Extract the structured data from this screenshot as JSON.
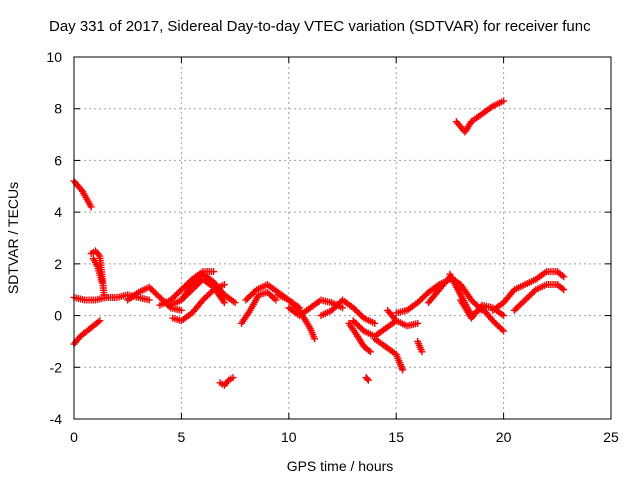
{
  "chart_data": {
    "type": "scatter",
    "title": "Day 331 of 2017, Sidereal Day-to-day VTEC variation (SDTVAR) for receiver func",
    "xlabel": "GPS time / hours",
    "ylabel": "SDTVAR / TECUs",
    "xlim": [
      0,
      25
    ],
    "ylim": [
      -4,
      10
    ],
    "xticks": [
      0,
      5,
      10,
      15,
      20,
      25
    ],
    "yticks": [
      -4,
      -2,
      0,
      2,
      4,
      6,
      8,
      10
    ],
    "grid": true,
    "marker": "+",
    "color": "#ff0000",
    "series": [
      {
        "name": "SDTVAR",
        "tracks": [
          [
            [
              0.0,
              5.2
            ],
            [
              0.2,
              5.0
            ],
            [
              0.4,
              4.8
            ],
            [
              0.6,
              4.5
            ],
            [
              0.8,
              4.2
            ]
          ],
          [
            [
              0.0,
              -1.1
            ],
            [
              0.3,
              -0.8
            ],
            [
              0.6,
              -0.6
            ],
            [
              0.9,
              -0.4
            ],
            [
              1.2,
              -0.2
            ]
          ],
          [
            [
              0.0,
              0.7
            ],
            [
              0.5,
              0.6
            ],
            [
              1.0,
              0.6
            ],
            [
              1.5,
              0.7
            ],
            [
              2.0,
              0.7
            ],
            [
              2.5,
              0.8
            ],
            [
              3.0,
              0.7
            ],
            [
              3.5,
              0.6
            ]
          ],
          [
            [
              0.8,
              2.4
            ],
            [
              1.0,
              2.5
            ],
            [
              1.2,
              2.3
            ],
            [
              1.3,
              1.6
            ],
            [
              1.4,
              0.8
            ]
          ],
          [
            [
              0.9,
              2.2
            ],
            [
              1.1,
              1.9
            ],
            [
              1.3,
              1.3
            ]
          ],
          [
            [
              2.5,
              0.6
            ],
            [
              3.0,
              0.9
            ],
            [
              3.5,
              1.1
            ],
            [
              4.0,
              0.7
            ],
            [
              4.5,
              0.3
            ],
            [
              5.0,
              0.2
            ]
          ],
          [
            [
              4.0,
              0.4
            ],
            [
              4.5,
              0.6
            ],
            [
              5.0,
              1.0
            ],
            [
              5.5,
              1.4
            ],
            [
              6.0,
              1.7
            ],
            [
              6.5,
              1.7
            ]
          ],
          [
            [
              4.5,
              0.4
            ],
            [
              5.0,
              0.6
            ],
            [
              5.5,
              1.0
            ],
            [
              6.0,
              1.4
            ],
            [
              6.5,
              1.1
            ],
            [
              7.0,
              0.5
            ]
          ],
          [
            [
              5.0,
              0.6
            ],
            [
              5.5,
              1.2
            ],
            [
              6.0,
              1.6
            ],
            [
              6.5,
              1.3
            ],
            [
              7.0,
              0.8
            ],
            [
              7.5,
              0.5
            ]
          ],
          [
            [
              4.6,
              -0.1
            ],
            [
              5.0,
              -0.2
            ],
            [
              5.5,
              0.1
            ],
            [
              6.0,
              0.6
            ],
            [
              6.5,
              1.0
            ],
            [
              7.0,
              1.2
            ]
          ],
          [
            [
              6.8,
              -2.6
            ],
            [
              7.0,
              -2.7
            ],
            [
              7.2,
              -2.5
            ],
            [
              7.4,
              -2.4
            ]
          ],
          [
            [
              8.0,
              0.6
            ],
            [
              8.5,
              1.0
            ],
            [
              9.0,
              1.2
            ],
            [
              9.5,
              0.9
            ],
            [
              10.0,
              0.6
            ],
            [
              10.5,
              0.3
            ]
          ],
          [
            [
              7.8,
              -0.3
            ],
            [
              8.2,
              0.2
            ],
            [
              8.6,
              0.8
            ],
            [
              9.0,
              0.9
            ],
            [
              9.4,
              0.6
            ]
          ],
          [
            [
              9.5,
              0.8
            ],
            [
              10.0,
              0.6
            ],
            [
              10.5,
              0.2
            ],
            [
              11.0,
              -0.5
            ],
            [
              11.2,
              -0.9
            ]
          ],
          [
            [
              10.0,
              0.3
            ],
            [
              10.5,
              0.0
            ],
            [
              11.0,
              0.3
            ],
            [
              11.5,
              0.6
            ],
            [
              12.0,
              0.5
            ],
            [
              12.5,
              0.3
            ]
          ],
          [
            [
              11.5,
              0.0
            ],
            [
              12.0,
              0.2
            ],
            [
              12.5,
              0.6
            ],
            [
              13.0,
              0.3
            ],
            [
              13.5,
              -0.1
            ],
            [
              14.0,
              -0.3
            ]
          ],
          [
            [
              12.8,
              -0.3
            ],
            [
              13.2,
              -0.8
            ],
            [
              13.5,
              -1.2
            ],
            [
              13.8,
              -1.4
            ]
          ],
          [
            [
              13.0,
              -0.2
            ],
            [
              13.5,
              -0.6
            ],
            [
              14.0,
              -0.8
            ],
            [
              14.5,
              -0.5
            ],
            [
              15.0,
              -0.2
            ]
          ],
          [
            [
              14.0,
              -0.9
            ],
            [
              14.5,
              -1.2
            ],
            [
              15.0,
              -1.5
            ],
            [
              15.2,
              -1.9
            ],
            [
              15.3,
              -2.1
            ]
          ],
          [
            [
              14.6,
              0.2
            ],
            [
              15.0,
              -0.2
            ],
            [
              15.5,
              -0.4
            ],
            [
              16.0,
              -0.3
            ]
          ],
          [
            [
              13.6,
              -2.4
            ],
            [
              13.7,
              -2.5
            ]
          ],
          [
            [
              16.0,
              -1.0
            ],
            [
              16.2,
              -1.4
            ]
          ],
          [
            [
              15.0,
              0.1
            ],
            [
              15.5,
              0.2
            ],
            [
              16.0,
              0.5
            ],
            [
              16.5,
              0.9
            ],
            [
              17.0,
              1.2
            ],
            [
              17.5,
              1.4
            ]
          ],
          [
            [
              16.5,
              0.5
            ],
            [
              17.0,
              1.0
            ],
            [
              17.5,
              1.5
            ],
            [
              18.0,
              1.2
            ],
            [
              18.5,
              0.6
            ],
            [
              19.0,
              0.2
            ]
          ],
          [
            [
              17.5,
              1.6
            ],
            [
              18.0,
              0.8
            ],
            [
              18.5,
              0.0
            ],
            [
              19.0,
              0.3
            ],
            [
              19.5,
              -0.2
            ],
            [
              20.0,
              -0.6
            ]
          ],
          [
            [
              18.0,
              0.6
            ],
            [
              18.5,
              -0.1
            ],
            [
              19.0,
              0.4
            ],
            [
              19.5,
              0.3
            ],
            [
              20.0,
              0.0
            ]
          ],
          [
            [
              19.5,
              0.2
            ],
            [
              20.0,
              0.5
            ],
            [
              20.5,
              1.0
            ],
            [
              21.0,
              1.2
            ],
            [
              21.5,
              1.4
            ],
            [
              22.0,
              1.7
            ],
            [
              22.5,
              1.7
            ],
            [
              22.8,
              1.5
            ]
          ],
          [
            [
              20.5,
              0.2
            ],
            [
              21.0,
              0.6
            ],
            [
              21.5,
              1.0
            ],
            [
              22.0,
              1.2
            ],
            [
              22.5,
              1.2
            ],
            [
              22.8,
              1.0
            ]
          ],
          [
            [
              17.8,
              7.5
            ],
            [
              18.0,
              7.3
            ],
            [
              18.2,
              7.1
            ],
            [
              18.5,
              7.5
            ],
            [
              19.0,
              7.8
            ],
            [
              19.5,
              8.1
            ],
            [
              20.0,
              8.3
            ]
          ]
        ]
      }
    ]
  }
}
